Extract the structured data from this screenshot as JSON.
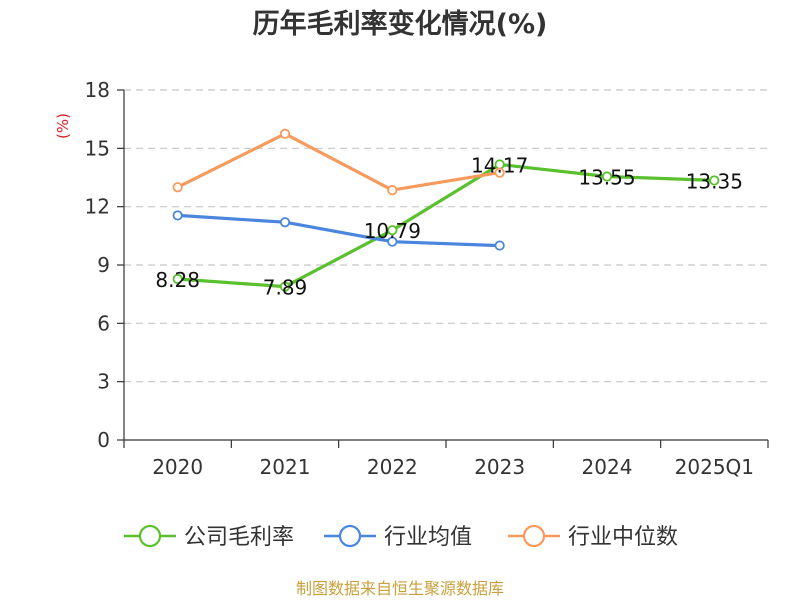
{
  "title": "历年毛利率变化情况(%)",
  "source": "制图数据来自恒生聚源数据库",
  "colors": {
    "company": "#5ac02e",
    "industry_avg": "#4a86dc",
    "industry_median": "#f79a5e",
    "grid": "#c8c8c8",
    "axis": "#333333",
    "unit": "#e02020",
    "source": "#c8a03c"
  },
  "chart_data": {
    "type": "line",
    "title": "历年毛利率变化情况(%)",
    "ylabel": "(%)",
    "xlabel": "",
    "categories": [
      "2020",
      "2021",
      "2022",
      "2023",
      "2024",
      "2025Q1"
    ],
    "ylim": [
      0,
      18
    ],
    "yticks": [
      "0",
      "3",
      "6",
      "9",
      "12",
      "15",
      "18"
    ],
    "grid": true,
    "legend_position": "bottom",
    "series": [
      {
        "name": "公司毛利率",
        "color": "#5ac02e",
        "values": [
          8.28,
          7.89,
          10.79,
          14.17,
          13.55,
          13.35
        ],
        "labels": [
          "8.28",
          "7.89",
          "10.79",
          "14.17",
          "13.55",
          "13.35"
        ]
      },
      {
        "name": "行业均值",
        "color": "#4a86dc",
        "values": [
          11.55,
          11.2,
          10.2,
          10.0,
          null,
          null
        ]
      },
      {
        "name": "行业中位数",
        "color": "#f79a5e",
        "values": [
          13.0,
          15.75,
          12.85,
          13.75,
          null,
          null
        ]
      }
    ]
  }
}
